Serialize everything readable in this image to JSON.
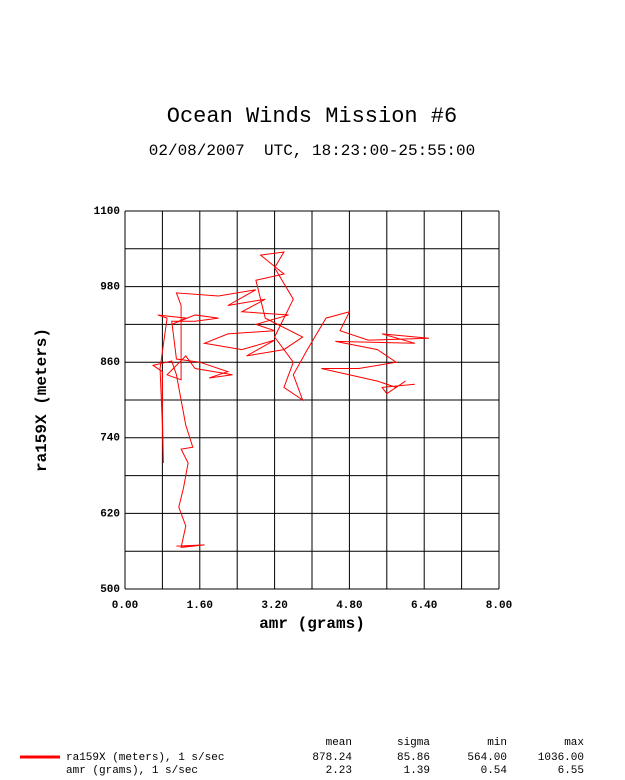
{
  "chart_data": {
    "type": "line",
    "title": "Ocean Winds Mission #6",
    "subtitle": "02/08/2007  UTC, 18:23:00-25:55:00",
    "x_label": "amr (grams)",
    "y_label": "ra159X (meters)",
    "xlim": [
      0,
      8
    ],
    "ylim": [
      500,
      1100
    ],
    "xticks": [
      {
        "value": 0,
        "label": "0.00"
      },
      {
        "value": 1.6,
        "label": "1.60"
      },
      {
        "value": 3.2,
        "label": "3.20"
      },
      {
        "value": 4.8,
        "label": "4.80"
      },
      {
        "value": 6.4,
        "label": "6.40"
      },
      {
        "value": 8,
        "label": "8.00"
      }
    ],
    "yticks": [
      500,
      620,
      740,
      860,
      980,
      1100
    ],
    "xgrid": [
      0.8,
      2.4,
      4.0,
      5.6,
      7.2
    ],
    "ygrid": [
      560,
      680,
      800,
      920,
      1040
    ],
    "grid": true,
    "x": [
      1.1,
      1.7,
      1.2,
      1.3,
      1.15,
      1.25,
      1.35,
      1.2,
      1.45,
      1.3,
      1.2,
      1.1,
      1.0,
      0.6,
      0.8,
      0.8,
      0.82,
      0.8,
      0.75,
      0.9,
      0.7,
      1.3,
      1.0,
      1.5,
      2.0,
      1.5,
      1.0,
      1.1,
      1.6,
      2.2,
      1.8,
      2.3,
      1.5,
      1.3,
      0.9,
      1.2,
      1.2,
      1.1,
      2.0,
      2.8,
      2.2,
      3.0,
      2.5,
      3.5,
      2.8,
      3.2,
      2.2,
      1.7,
      2.5,
      3.2,
      2.6,
      3.4,
      3.8,
      3.0,
      2.8,
      3.4,
      2.9,
      3.4,
      3.2,
      3.6,
      3.2,
      3.6,
      3.4,
      3.8,
      3.6,
      3.9,
      4.3,
      4.8,
      4.6,
      5.2,
      6.5,
      5.5,
      6.2,
      4.5,
      5.4,
      5.8,
      5.0,
      4.2,
      5.4,
      5.8,
      6.0,
      5.6,
      5.5,
      6.2
    ],
    "series": [
      {
        "name": "ra159X (meters), 1 s/sec",
        "color": "#ff0000",
        "values": [
          568,
          570,
          566,
          600,
          630,
          660,
          700,
          722,
          725,
          760,
          800,
          840,
          862,
          855,
          845,
          780,
          700,
          760,
          850,
          930,
          935,
          930,
          920,
          935,
          930,
          925,
          925,
          865,
          860,
          845,
          835,
          840,
          850,
          870,
          840,
          832,
          950,
          970,
          965,
          975,
          950,
          960,
          940,
          935,
          920,
          910,
          905,
          890,
          880,
          895,
          870,
          880,
          900,
          930,
          990,
          1000,
          1030,
          1035,
          1010,
          960,
          900,
          860,
          820,
          800,
          840,
          880,
          930,
          940,
          910,
          895,
          898,
          905,
          890,
          893,
          880,
          860,
          850,
          850,
          830,
          820,
          830,
          810,
          820,
          825
        ]
      }
    ],
    "stats": {
      "columns": [
        "mean",
        "sigma",
        "min",
        "max"
      ],
      "rows": [
        {
          "values": [
            "878.24",
            "85.86",
            "564.00",
            "1036.00"
          ]
        },
        {
          "label": "amr (grams), 1 s/sec",
          "values": [
            "2.23",
            "1.39",
            "0.54",
            "6.55"
          ]
        }
      ]
    }
  }
}
